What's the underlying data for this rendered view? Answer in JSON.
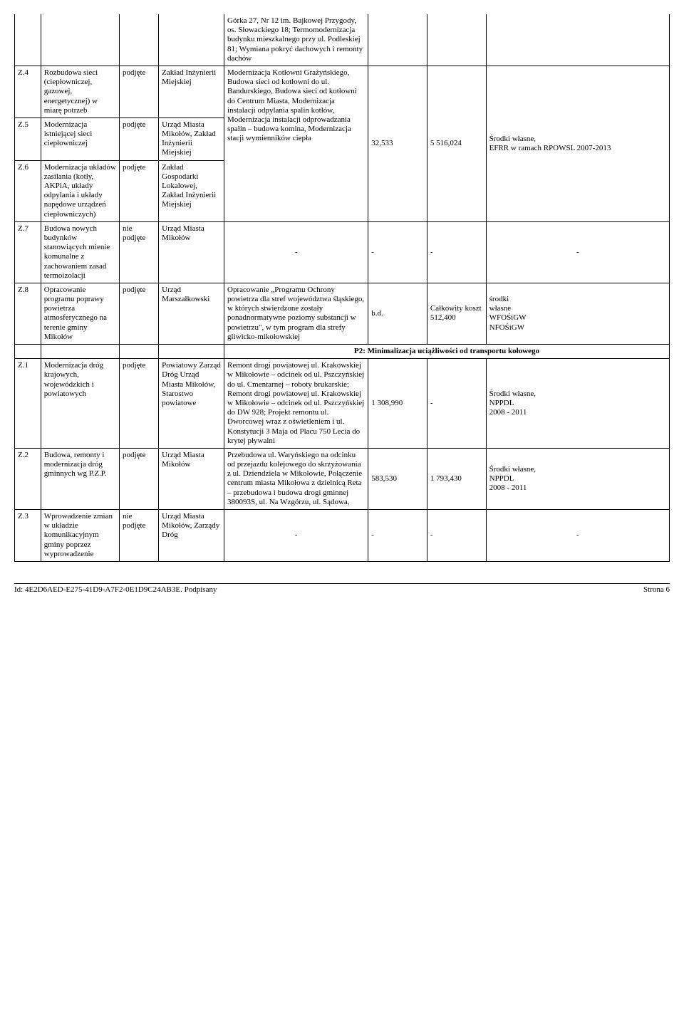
{
  "rows": {
    "r0": {
      "desc": "Górka 27, Nr 12 im. Bajkowej Przygody, os. Słowackiego 18; Termomodernizacja budynku mieszkalnego przy ul. Podleskiej 81; Wymiana pokryć dachowych i remonty dachów"
    },
    "z4": {
      "id": "Z.4",
      "task": "Rozbudowa sieci (ciepłowniczej, gazowej, energetycznej) w miarę potrzeb",
      "status": "podjęte",
      "unit": "Zakład Inżynierii Miejskiej",
      "desc": "Modernizacja Kotłowni Grażyńskiego, Budowa sieci od kotłowni do ul. Bandurskiego, Budowa sieci od kotłowni do Centrum Miasta, Modernizacja instalacji odpylania spalin kotłów, Modernizacja instalacji odprowadzania spalin – budowa komina, Modernizacja stacji wymienników ciepła",
      "num1": "32,533",
      "num2": "5 516,024",
      "src": "Środki własne,\nEFRR w ramach RPOWSL 2007-2013"
    },
    "z5": {
      "id": "Z.5",
      "task": "Modernizacja istniejącej sieci ciepłowniczej",
      "status": "podjęte",
      "unit": "Urząd Miasta Mikołów, Zakład Inżynierii Miejskiej"
    },
    "z6": {
      "id": "Z.6",
      "task": "Modernizacja układów zasilania (kotły, AKPiA, układy odpylania i układy napędowe urządzeń ciepłowniczych)",
      "status": "podjęte",
      "unit": "Zakład Gospodarki Lokalowej, Zakład Inżynierii Miejskiej"
    },
    "z7": {
      "id": "Z.7",
      "task": "Budowa nowych budynków stanowiących mienie komunalne z zachowaniem zasad termoizolacji",
      "status": "nie podjęte",
      "unit": "Urząd Miasta Mikołów",
      "desc": "-",
      "num1": "-",
      "num2": "-",
      "src": "-"
    },
    "z8": {
      "id": "Z.8",
      "task": "Opracowanie programu poprawy powietrza atmosferycznego na terenie gminy Mikołów",
      "status": "podjęte",
      "unit": "Urząd Marszałkowski",
      "desc": "Opracowanie „Programu Ochrony powietrza dla stref województwa śląskiego, w których stwierdzone zostały ponadnormatywne poziomy substancji w powietrzu\", w tym program dla strefy gliwicko-mikołowskiej",
      "num1": "b.d.",
      "num2": "Całkowity koszt 512,400",
      "src": "środki\nwłasne\nWFOŚiGW\nNFOŚiGW"
    },
    "section": "P2: Minimalizacja uciążliwości od transportu kołowego",
    "z1": {
      "id": "Z.1",
      "task": "Modernizacja dróg krajowych, wojewódzkich i powiatowych",
      "status": "podjęte",
      "unit": "Powiatowy Zarząd Dróg Urząd Miasta Mikołów, Starostwo powiatowe",
      "desc": "Remont drogi powiatowej ul. Krakowskiej w Mikołowie – odcinek od ul. Pszczyńskiej do ul. Cmentarnej – roboty brukarskie; Remont drogi powiatowej ul. Krakowskiej w Mikołowie – odcinek od ul. Pszczyńskiej do DW 928; Projekt remontu ul. Dworcowej wraz z oświetleniem i ul. Konstytucji 3 Maja od Placu 750 Lecia do krytej pływalni",
      "num1": "1 308,990",
      "num2": "-",
      "src": "Środki własne,\nNPPDL\n2008 - 2011"
    },
    "z2": {
      "id": "Z.2",
      "task": "Budowa, remonty i modernizacja dróg gminnych wg P.Z.P.",
      "status": "podjęte",
      "unit": "Urząd Miasta Mikołów",
      "desc": "Przebudowa ul. Waryńskiego na odcinku od przejazdu kolejowego do skrzyżowania z ul. Dziendziela w Mikołowie, Połączenie centrum miasta Mikołowa z dzielnicą Reta – przebudowa i budowa drogi gminnej 380093S, ul. Na Wzgórzu, ul. Sądowa,",
      "num1": "583,530",
      "num2": "1 793,430",
      "src": "Środki własne,\nNPPDL\n2008 - 2011"
    },
    "z3": {
      "id": "Z.3",
      "task": "Wprowadzenie zmian w układzie komunikacyjnym gminy poprzez wyprowadzenie",
      "status": "nie podjęte",
      "unit": "Urząd Miasta Mikołów, Zarządy Dróg",
      "desc": "-",
      "num1": "-",
      "num2": "-",
      "src": "-"
    }
  },
  "footer": {
    "left": "Id: 4E2D6AED-E275-41D9-A7F2-0E1D9C24AB3E. Podpisany",
    "right": "Strona 6"
  }
}
